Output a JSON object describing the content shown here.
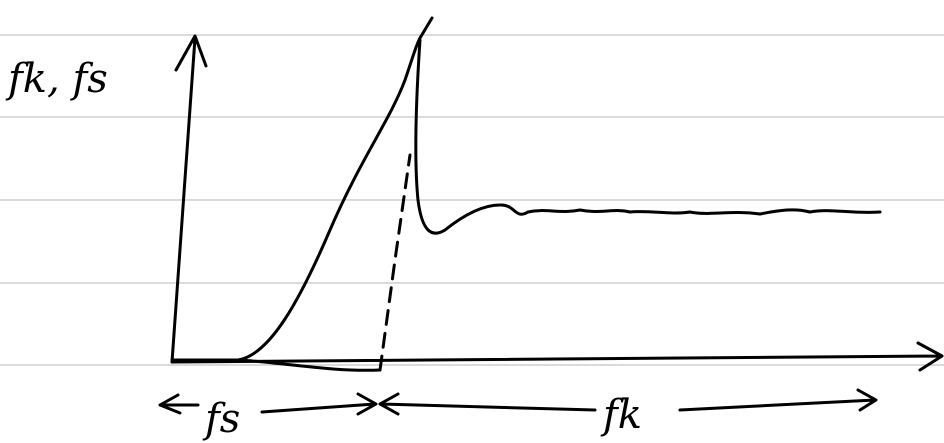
{
  "axis_label": "fk, fs",
  "regions": {
    "static": "fs",
    "kinetic": "fk"
  }
}
